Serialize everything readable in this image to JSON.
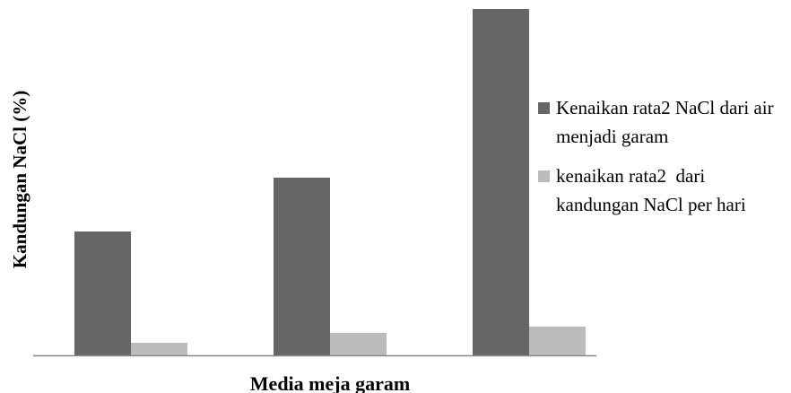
{
  "chart_data": {
    "type": "bar",
    "y_label": "Kandungan NaCl (%)",
    "x_label": "Media meja garam",
    "categories": [
      null,
      null,
      null
    ],
    "series": [
      {
        "name": "Kenaikan rata2 NaCl dari air menjadi garam",
        "color": "#666666",
        "values": [
          138,
          198,
          386
        ]
      },
      {
        "name": "kenaikan rata2  dari kandungan NaCl per hari",
        "color": "#bbbbbb",
        "values": [
          14,
          25,
          32
        ]
      }
    ],
    "ylim": [
      0,
      390
    ]
  }
}
